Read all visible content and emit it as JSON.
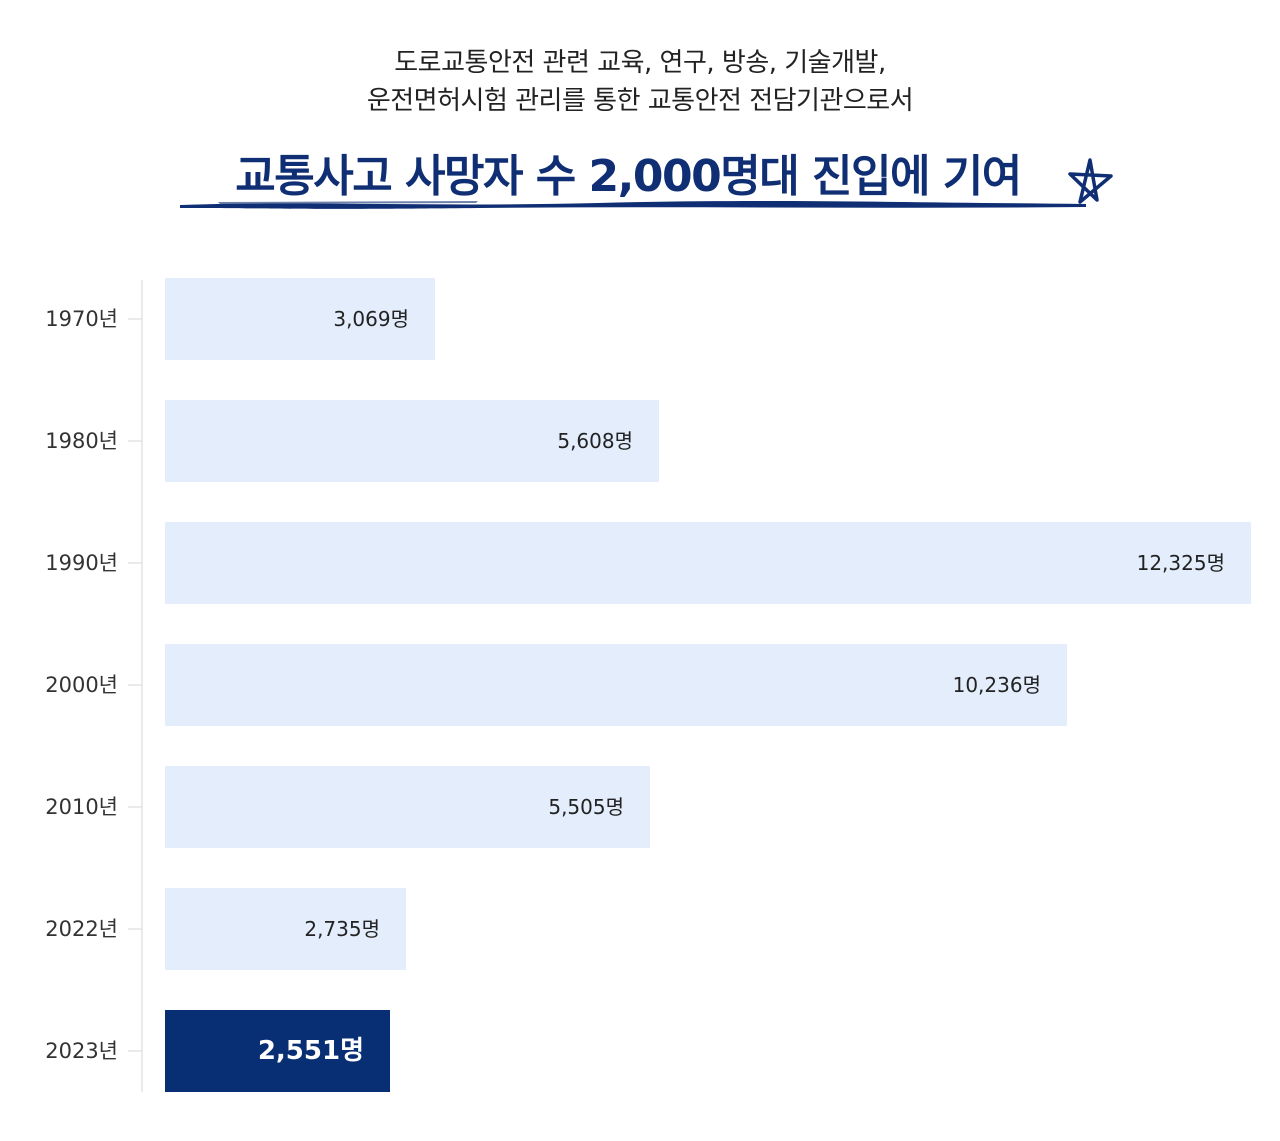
{
  "header": {
    "subtitle_line1": "도로교통안전 관련 교육, 연구, 방송, 기술개발,",
    "subtitle_line2": "운전면허시험 관리를 통한 교통안전 전담기관으로서",
    "headline": "교통사고 사망자 수 2,000명대 진입에 기여"
  },
  "colors": {
    "bar": "#e3edfc",
    "highlight_bar": "#082f74",
    "headline": "#0f2e73",
    "axis": "#d5d5d5"
  },
  "icons": {
    "decoration": "star-icon",
    "underline": "brush-underline"
  },
  "chart_data": {
    "type": "bar",
    "orientation": "horizontal",
    "categories": [
      "1970년",
      "1980년",
      "1990년",
      "2000년",
      "2010년",
      "2022년",
      "2023년"
    ],
    "values": [
      3069,
      5608,
      12325,
      10236,
      5505,
      2735,
      2551
    ],
    "value_labels": [
      "3,069명",
      "5,608명",
      "12,325명",
      "10,236명",
      "5,505명",
      "2,735명",
      "2,551명"
    ],
    "highlight_index": 6,
    "xlim": [
      0,
      12325
    ],
    "grid": false,
    "legend": "none"
  }
}
